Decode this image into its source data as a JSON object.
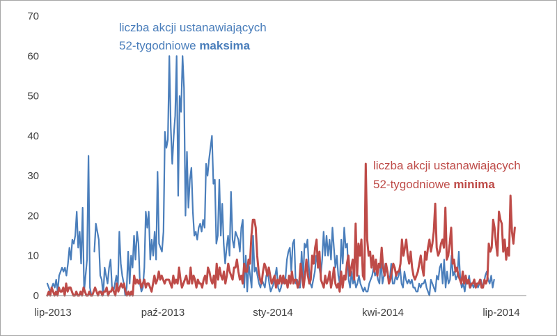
{
  "chart_data": {
    "type": "line",
    "ylim": [
      0,
      70
    ],
    "yticks": [
      "0",
      "10",
      "20",
      "30",
      "40",
      "50",
      "60",
      "70"
    ],
    "xticks": [
      "lip-2013",
      "paź-2013",
      "sty-2014",
      "kwi-2014",
      "lip-2014"
    ],
    "grid": false,
    "series": [
      {
        "key": "maksima",
        "color": "#4a7ebb",
        "values": [
          3,
          2,
          1,
          2,
          3,
          2,
          4,
          1,
          5,
          6,
          7,
          6,
          7,
          5,
          8,
          12,
          9,
          14,
          13,
          15,
          21,
          12,
          16,
          8,
          22,
          1,
          5,
          9,
          35,
          2,
          0,
          null,
          11,
          18,
          16,
          14,
          5,
          4,
          0,
          7,
          5,
          3,
          7,
          9,
          2,
          1,
          3,
          5,
          2,
          16,
          8,
          5,
          3,
          0,
          2,
          11,
          3,
          10,
          7,
          15,
          9,
          16,
          13,
          3,
          1,
          2,
          7,
          21,
          17,
          21,
          9,
          14,
          10,
          16,
          9,
          31,
          13,
          12,
          11,
          16,
          41,
          37,
          39,
          60,
          42,
          33,
          40,
          45,
          60,
          25,
          50,
          46,
          60,
          52,
          20,
          36,
          22,
          29,
          32,
          21,
          15,
          16,
          14,
          17,
          18,
          16,
          19,
          17,
          33,
          30,
          34,
          37,
          40,
          28,
          29,
          13,
          15,
          29,
          15,
          23,
          13,
          8,
          12,
          15,
          10,
          26,
          14,
          12,
          16,
          15,
          14,
          11,
          17,
          19,
          2,
          10,
          1,
          8,
          5,
          2,
          15,
          6,
          7,
          5,
          3,
          2,
          4,
          3,
          2,
          5,
          6,
          3,
          1,
          2,
          3,
          5,
          7,
          2,
          1,
          2,
          4,
          3,
          4,
          9,
          11,
          12,
          6,
          13,
          14,
          3,
          4,
          2,
          2,
          11,
          4,
          13,
          12,
          14,
          7,
          3,
          2,
          4,
          6,
          10,
          8,
          7,
          5,
          9,
          16,
          10,
          15,
          10,
          14,
          9,
          17,
          12,
          7,
          10,
          5,
          3,
          14,
          8,
          17,
          12,
          13,
          4,
          2,
          6,
          3,
          4,
          2,
          3,
          5,
          3,
          2,
          1,
          2,
          1,
          1,
          3,
          4,
          5,
          7,
          5,
          6,
          4,
          3,
          9,
          3,
          5,
          8,
          6,
          5,
          4,
          8,
          3,
          3,
          5,
          4,
          5,
          7,
          3,
          2,
          6,
          4,
          3,
          4,
          3,
          4,
          2,
          2,
          1,
          1,
          3,
          2,
          3,
          3,
          4,
          2,
          1,
          0,
          4,
          3,
          2,
          1,
          5,
          4,
          7,
          8,
          3,
          9,
          2,
          6,
          3,
          4,
          10,
          5,
          6,
          4,
          5,
          11,
          4,
          2,
          3,
          1,
          4,
          3,
          5,
          2,
          3,
          2,
          3,
          3,
          2,
          3,
          4,
          2,
          3,
          5,
          6,
          4,
          3,
          5,
          2,
          4,
          3,
          4,
          5,
          7,
          5,
          6,
          4,
          3,
          4,
          6,
          3,
          2,
          1,
          3,
          4,
          6,
          2,
          4,
          5,
          4,
          5
        ],
        "segments": [
          [
            0,
            30
          ],
          [
            31,
            304
          ]
        ]
      },
      {
        "key": "minima",
        "color": "#be4b48",
        "values": [
          0,
          1,
          0,
          2,
          1,
          0,
          1,
          0,
          2,
          1,
          1,
          2,
          0,
          3,
          1,
          2,
          2,
          1,
          0,
          0,
          1,
          0,
          0,
          1,
          0,
          2,
          1,
          0,
          0,
          1,
          0,
          0,
          1,
          2,
          1,
          0,
          1,
          1,
          0,
          1,
          1,
          2,
          0,
          1,
          1,
          2,
          1,
          0,
          3,
          1,
          2,
          3,
          2,
          3,
          1,
          0,
          1,
          0,
          1,
          0,
          5,
          3,
          4,
          3,
          4,
          2,
          3,
          4,
          2,
          3,
          3,
          2,
          1,
          3,
          5,
          3,
          4,
          6,
          4,
          5,
          4,
          3,
          4,
          4,
          4,
          3,
          2,
          5,
          3,
          4,
          3,
          7,
          4,
          2,
          3,
          4,
          5,
          3,
          3,
          7,
          3,
          5,
          4,
          2,
          4,
          3,
          3,
          2,
          4,
          5,
          3,
          7,
          6,
          4,
          3,
          5,
          2,
          8,
          4,
          7,
          5,
          4,
          6,
          3,
          5,
          8,
          6,
          5,
          4,
          7,
          7,
          9,
          6,
          4,
          5,
          3,
          8,
          6,
          6,
          9,
          8,
          15,
          19,
          19,
          17,
          10,
          6,
          4,
          3,
          6,
          8,
          7,
          5,
          7,
          5,
          3,
          4,
          5,
          2,
          4,
          3,
          5,
          3,
          5,
          3,
          4,
          2,
          5,
          3,
          6,
          3,
          4,
          4,
          2,
          3,
          8,
          5,
          2,
          5,
          9,
          5,
          3,
          4,
          10,
          8,
          12,
          14,
          7,
          11,
          4,
          3,
          2,
          5,
          3,
          4,
          6,
          2,
          4,
          7,
          3,
          2,
          3,
          1,
          6,
          2,
          5,
          4,
          8,
          10,
          5,
          7,
          9,
          4,
          18,
          5,
          13,
          10,
          14,
          5,
          4,
          33,
          14,
          10,
          11,
          7,
          10,
          6,
          9,
          5,
          8,
          7,
          12,
          7,
          5,
          8,
          6,
          3,
          4,
          6,
          8,
          7,
          5,
          6,
          6,
          8,
          14,
          10,
          12,
          14,
          10,
          8,
          11,
          7,
          5,
          4,
          5,
          6,
          8,
          10,
          7,
          5,
          11,
          9,
          12,
          14,
          11,
          13,
          16,
          23,
          12,
          10,
          11,
          13,
          14,
          12,
          22,
          9,
          10,
          13,
          17,
          8,
          9,
          6,
          7,
          5,
          4,
          3,
          6,
          3,
          5,
          3,
          4,
          2,
          3,
          3,
          4,
          2,
          3,
          3,
          4,
          2,
          2,
          4,
          3,
          4,
          13,
          11,
          12,
          19,
          17,
          13,
          10,
          21,
          19,
          18,
          11,
          14,
          9,
          12,
          10,
          25,
          16,
          13,
          17,
          15,
          14,
          21,
          14,
          13,
          12,
          20
        ],
        "segments": [
          [
            0,
            323
          ]
        ]
      }
    ],
    "annotations": [
      {
        "key": "max",
        "color": "#4a7ebb",
        "line1": "liczba akcji ustanawiających",
        "line2_prefix": "52-tygodniowe ",
        "line2_bold": "maksima"
      },
      {
        "key": "min",
        "color": "#be4b48",
        "line1": "liczba akcji ustanawiających",
        "line2_prefix": "52-tygodniowe ",
        "line2_bold": "minima"
      }
    ]
  }
}
